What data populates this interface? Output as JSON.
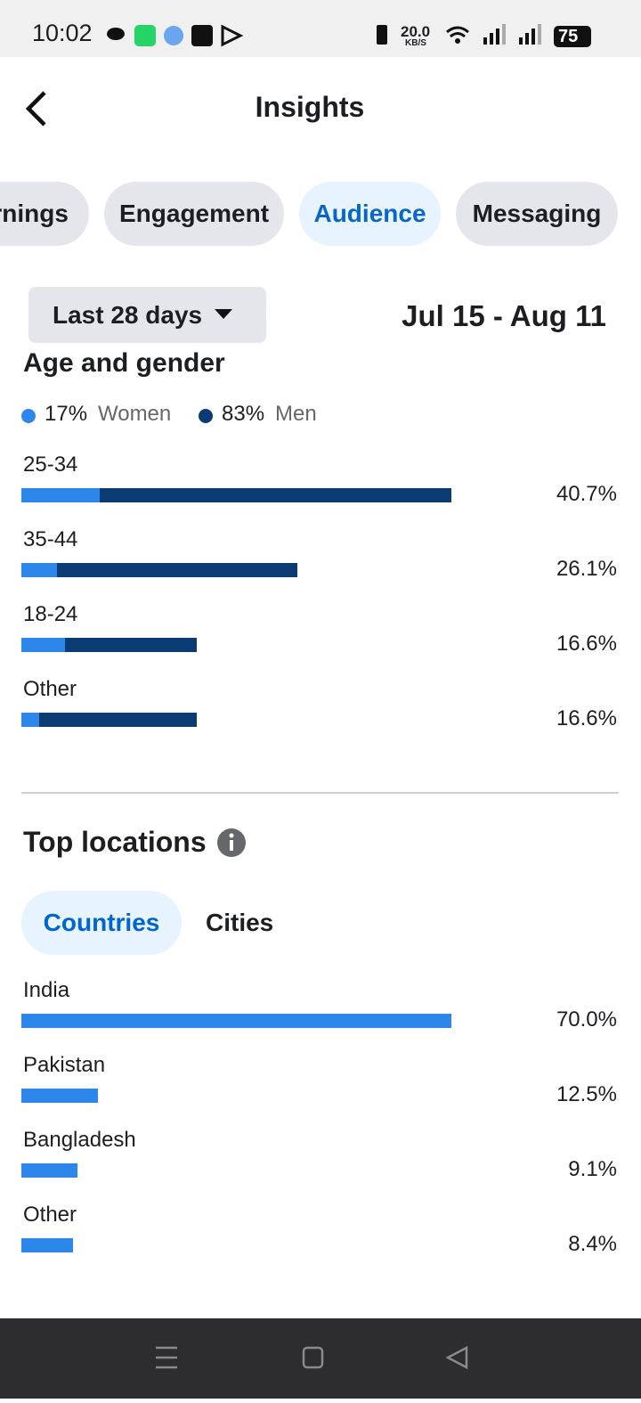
{
  "status_bar": {
    "time": "10:02",
    "speed": "20.0",
    "speed_unit": "KB/S",
    "battery": "75"
  },
  "header": {
    "title": "Insights"
  },
  "tabs": [
    "Earnings",
    "Engagement",
    "Audience",
    "Messaging"
  ],
  "filter": {
    "period": "Last 28 days",
    "date_range": "Jul 15 - Aug 11"
  },
  "age_gender": {
    "title": "Age and gender",
    "legend": [
      {
        "value": "17%",
        "label": "Women",
        "color": "#2d87eb"
      },
      {
        "value": "83%",
        "label": "Men",
        "color": "#0a3b72"
      }
    ],
    "categories": [
      "25-34",
      "35-44",
      "18-24",
      "Other"
    ],
    "values": [
      40.7,
      26.1,
      16.6,
      16.6
    ],
    "value_labels": [
      "40.7%",
      "26.1%",
      "16.6%",
      "16.6%"
    ],
    "women": [
      7.4,
      3.4,
      4.1,
      1.7
    ]
  },
  "top_locations": {
    "title": "Top locations",
    "tabs": [
      "Countries",
      "Cities"
    ],
    "categories": [
      "India",
      "Pakistan",
      "Bangladesh",
      "Other"
    ],
    "values": [
      70.0,
      12.5,
      9.1,
      8.4
    ],
    "value_labels": [
      "70.0%",
      "12.5%",
      "9.1%",
      "8.4%"
    ],
    "color": "#2d87eb"
  }
}
